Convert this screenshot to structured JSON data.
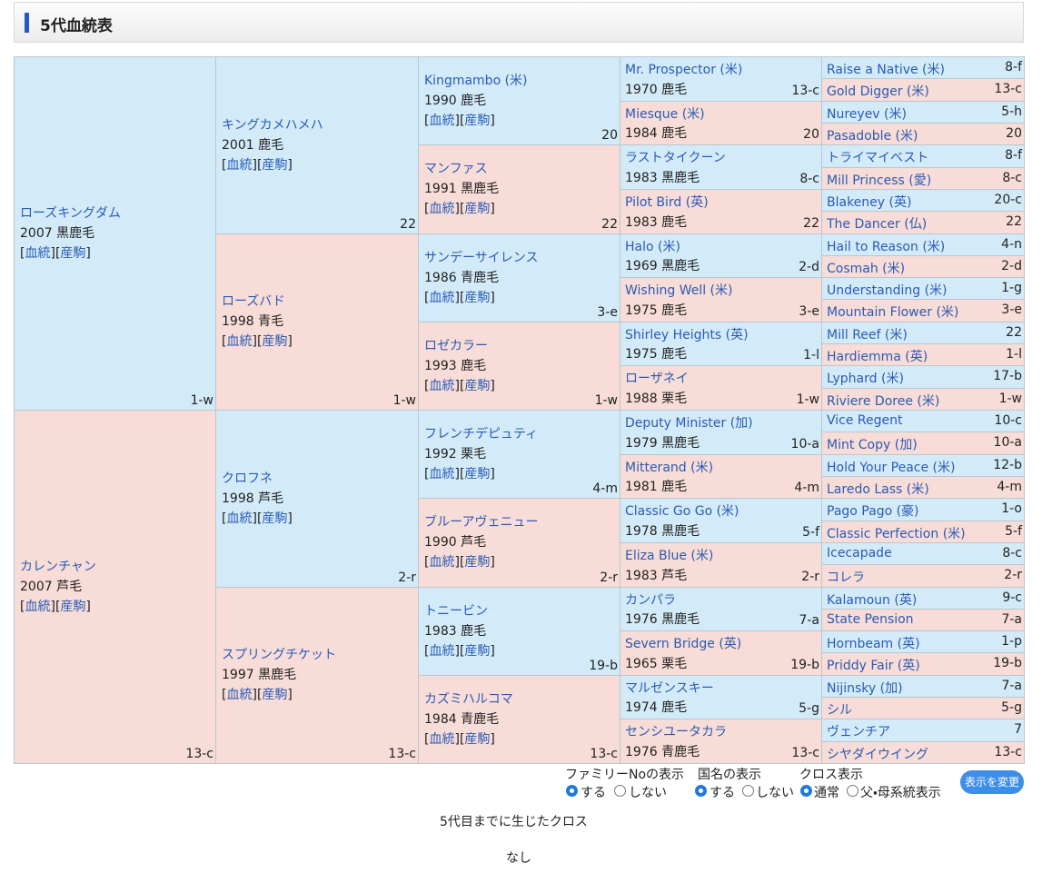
{
  "header": {
    "title": "5代血統表"
  },
  "pedigree": {
    "links": [
      "血統",
      "産駒"
    ],
    "bracket": [
      "[",
      "]"
    ],
    "generations": [
      [
        {
          "name": "ローズキングダム",
          "info": "2007 黒鹿毛",
          "family": "1-w"
        },
        {
          "name": "カレンチャン",
          "info": "2007 芦毛",
          "family": "13-c"
        }
      ],
      [
        {
          "name": "キングカメハメハ",
          "info": "2001 鹿毛",
          "family": "22"
        },
        {
          "name": "ローズバド",
          "info": "1998 青毛",
          "family": "1-w"
        },
        {
          "name": "クロフネ",
          "info": "1998 芦毛",
          "family": "2-r"
        },
        {
          "name": "スプリングチケット",
          "info": "1997 黒鹿毛",
          "family": "13-c"
        }
      ],
      [
        {
          "name": "Kingmambo (米)",
          "info": "1990 鹿毛",
          "family": "20"
        },
        {
          "name": "マンファス",
          "info": "1991 黒鹿毛",
          "family": "22"
        },
        {
          "name": "サンデーサイレンス",
          "info": "1986 青鹿毛",
          "family": "3-e"
        },
        {
          "name": "ロゼカラー",
          "info": "1993 鹿毛",
          "family": "1-w"
        },
        {
          "name": "フレンチデピュティ",
          "info": "1992 栗毛",
          "family": "4-m"
        },
        {
          "name": "ブルーアヴェニュー",
          "info": "1990 芦毛",
          "family": "2-r"
        },
        {
          "name": "トニービン",
          "info": "1983 鹿毛",
          "family": "19-b"
        },
        {
          "name": "カズミハルコマ",
          "info": "1984 青鹿毛",
          "family": "13-c"
        }
      ],
      [
        {
          "name": "Mr. Prospector (米)",
          "info": "1970 鹿毛",
          "family": "13-c"
        },
        {
          "name": "Miesque (米)",
          "info": "1984 鹿毛",
          "family": "20"
        },
        {
          "name": "ラストタイクーン",
          "info": "1983 黒鹿毛",
          "family": "8-c"
        },
        {
          "name": "Pilot Bird (英)",
          "info": "1983 鹿毛",
          "family": "22"
        },
        {
          "name": "Halo (米)",
          "info": "1969 黒鹿毛",
          "family": "2-d"
        },
        {
          "name": "Wishing Well (米)",
          "info": "1975 鹿毛",
          "family": "3-e"
        },
        {
          "name": "Shirley Heights (英)",
          "info": "1975 鹿毛",
          "family": "1-l"
        },
        {
          "name": "ローザネイ",
          "info": "1988 栗毛",
          "family": "1-w"
        },
        {
          "name": "Deputy Minister (加)",
          "info": "1979 黒鹿毛",
          "family": "10-a"
        },
        {
          "name": "Mitterand (米)",
          "info": "1981 鹿毛",
          "family": "4-m"
        },
        {
          "name": "Classic Go Go (米)",
          "info": "1978 黒鹿毛",
          "family": "5-f"
        },
        {
          "name": "Eliza Blue (米)",
          "info": "1983 芦毛",
          "family": "2-r"
        },
        {
          "name": "カンパラ",
          "info": "1976 黒鹿毛",
          "family": "7-a"
        },
        {
          "name": "Severn Bridge (英)",
          "info": "1965 栗毛",
          "family": "19-b"
        },
        {
          "name": "マルゼンスキー",
          "info": "1974 鹿毛",
          "family": "5-g"
        },
        {
          "name": "センシユータカラ",
          "info": "1976 青鹿毛",
          "family": "13-c"
        }
      ],
      [
        {
          "name": "Raise a Native (米)",
          "family": "8-f"
        },
        {
          "name": "Gold Digger (米)",
          "family": "13-c"
        },
        {
          "name": "Nureyev (米)",
          "family": "5-h"
        },
        {
          "name": "Pasadoble (米)",
          "family": "20"
        },
        {
          "name": "トライマイベスト",
          "family": "8-f"
        },
        {
          "name": "Mill Princess (愛)",
          "family": "8-c"
        },
        {
          "name": "Blakeney (英)",
          "family": "20-c"
        },
        {
          "name": "The Dancer (仏)",
          "family": "22"
        },
        {
          "name": "Hail to Reason (米)",
          "family": "4-n"
        },
        {
          "name": "Cosmah (米)",
          "family": "2-d"
        },
        {
          "name": "Understanding (米)",
          "family": "1-g"
        },
        {
          "name": "Mountain Flower (米)",
          "family": "3-e"
        },
        {
          "name": "Mill Reef (米)",
          "family": "22"
        },
        {
          "name": "Hardiemma (英)",
          "family": "1-l"
        },
        {
          "name": "Lyphard (米)",
          "family": "17-b"
        },
        {
          "name": "Riviere Doree (米)",
          "family": "1-w"
        },
        {
          "name": "Vice Regent",
          "family": "10-c"
        },
        {
          "name": "Mint Copy (加)",
          "family": "10-a"
        },
        {
          "name": "Hold Your Peace (米)",
          "family": "12-b"
        },
        {
          "name": "Laredo Lass (米)",
          "family": "4-m"
        },
        {
          "name": "Pago Pago (豪)",
          "family": "1-o"
        },
        {
          "name": "Classic Perfection (米)",
          "family": "5-f"
        },
        {
          "name": "Icecapade",
          "family": "8-c"
        },
        {
          "name": "コレラ",
          "family": "2-r"
        },
        {
          "name": "Kalamoun (英)",
          "family": "9-c"
        },
        {
          "name": "State Pension",
          "family": "7-a"
        },
        {
          "name": "Hornbeam (英)",
          "family": "1-p"
        },
        {
          "name": "Priddy Fair (英)",
          "family": "19-b"
        },
        {
          "name": "Nijinsky (加)",
          "family": "7-a"
        },
        {
          "name": "シル",
          "family": "5-g"
        },
        {
          "name": "ヴェンチア",
          "family": "7"
        },
        {
          "name": "シヤダイウイング",
          "family": "13-c"
        }
      ]
    ]
  },
  "display_options": {
    "family_no": {
      "label": "ファミリーNoの表示",
      "options": [
        "する",
        "しない"
      ]
    },
    "country": {
      "label": "国名の表示",
      "options": [
        "する",
        "しない"
      ]
    },
    "cross": {
      "label": "クロス表示",
      "options": [
        "通常",
        "父・母系統表示"
      ]
    },
    "button": "表示を変更"
  },
  "cross_section": {
    "title": "5代目までに生じたクロス",
    "result": "なし"
  }
}
